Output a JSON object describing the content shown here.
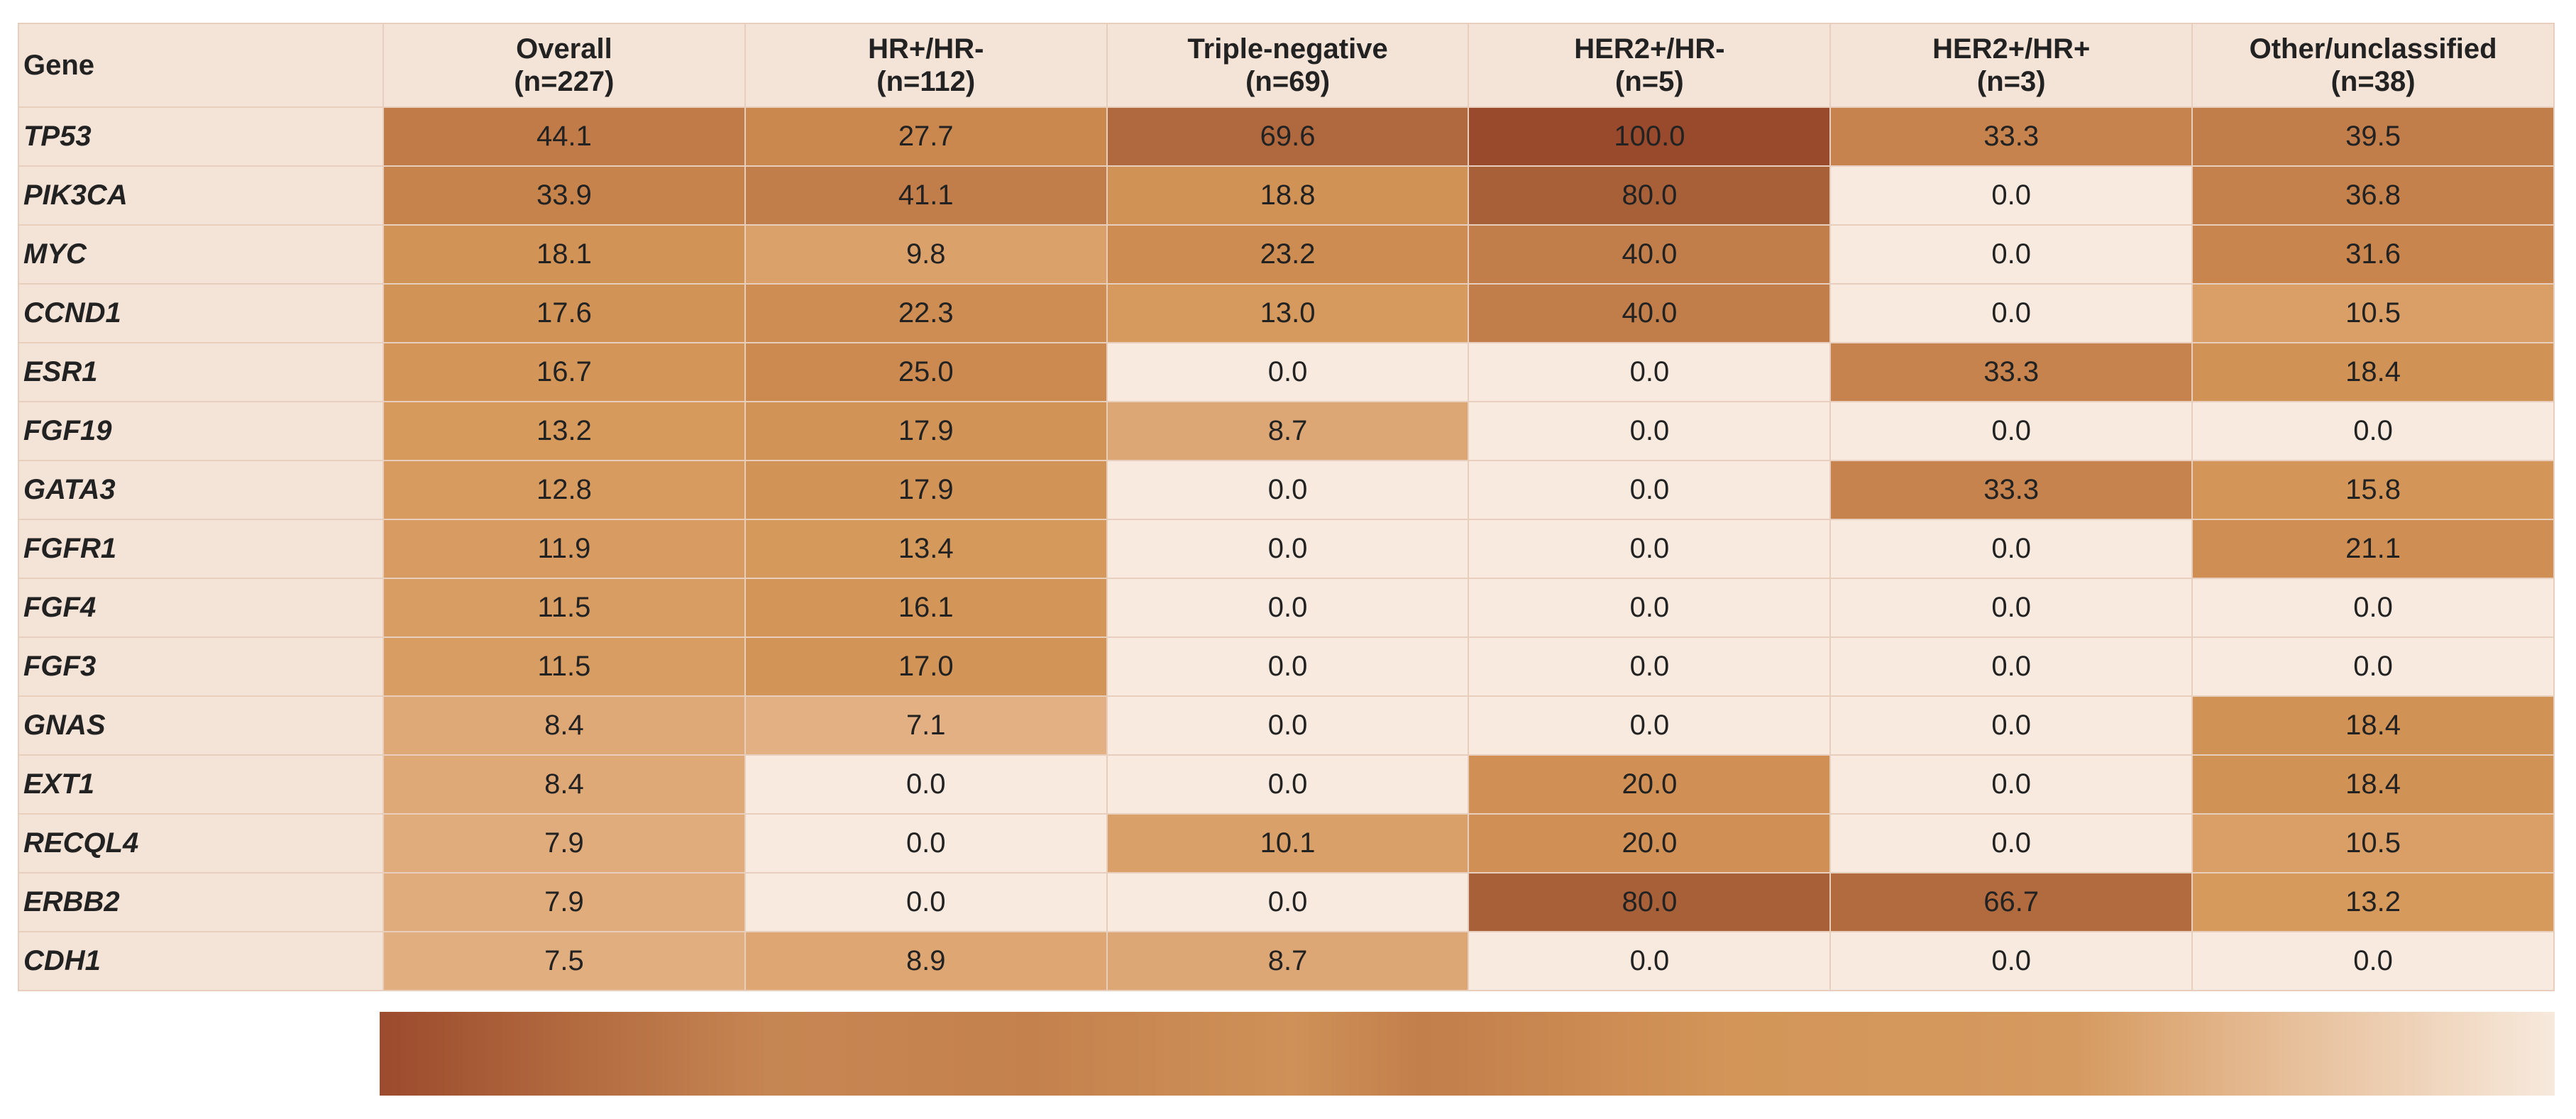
{
  "table": {
    "header": [
      "Gene",
      "Overall\n(n=227)",
      "HR+/HR-\n(n=112)",
      "Triple-negative\n(n=69)",
      "HER2+/HR-\n(n=5)",
      "HER2+/HR+\n(n=3)",
      "Other/unclassified\n(n=38)"
    ],
    "rows": [
      [
        "TP53",
        "44.1",
        "27.7",
        "69.6",
        "100.0",
        "33.3",
        "39.5"
      ],
      [
        "PIK3CA",
        "33.9",
        "41.1",
        "18.8",
        "80.0",
        "0.0",
        "36.8"
      ],
      [
        "MYC",
        "18.1",
        "9.8",
        "23.2",
        "40.0",
        "0.0",
        "31.6"
      ],
      [
        "CCND1",
        "17.6",
        "22.3",
        "13.0",
        "40.0",
        "0.0",
        "10.5"
      ],
      [
        "ESR1",
        "16.7",
        "25.0",
        "0.0",
        "0.0",
        "33.3",
        "18.4"
      ],
      [
        "FGF19",
        "13.2",
        "17.9",
        "8.7",
        "0.0",
        "0.0",
        "0.0"
      ],
      [
        "GATA3",
        "12.8",
        "17.9",
        "0.0",
        "0.0",
        "33.3",
        "15.8"
      ],
      [
        "FGFR1",
        "11.9",
        "13.4",
        "0.0",
        "0.0",
        "0.0",
        "21.1"
      ],
      [
        "FGF4",
        "11.5",
        "16.1",
        "0.0",
        "0.0",
        "0.0",
        "0.0"
      ],
      [
        "FGF3",
        "11.5",
        "17.0",
        "0.0",
        "0.0",
        "0.0",
        "0.0"
      ],
      [
        "GNAS",
        "8.4",
        "7.1",
        "0.0",
        "0.0",
        "0.0",
        "18.4"
      ],
      [
        "EXT1",
        "8.4",
        "0.0",
        "0.0",
        "20.0",
        "0.0",
        "18.4"
      ],
      [
        "RECQL4",
        "7.9",
        "0.0",
        "10.1",
        "20.0",
        "0.0",
        "10.5"
      ],
      [
        "ERBB2",
        "7.9",
        "0.0",
        "0.0",
        "80.0",
        "66.7",
        "13.2"
      ],
      [
        "CDH1",
        "7.5",
        "8.9",
        "8.7",
        "0.0",
        "0.0",
        "0.0"
      ]
    ]
  }
}
